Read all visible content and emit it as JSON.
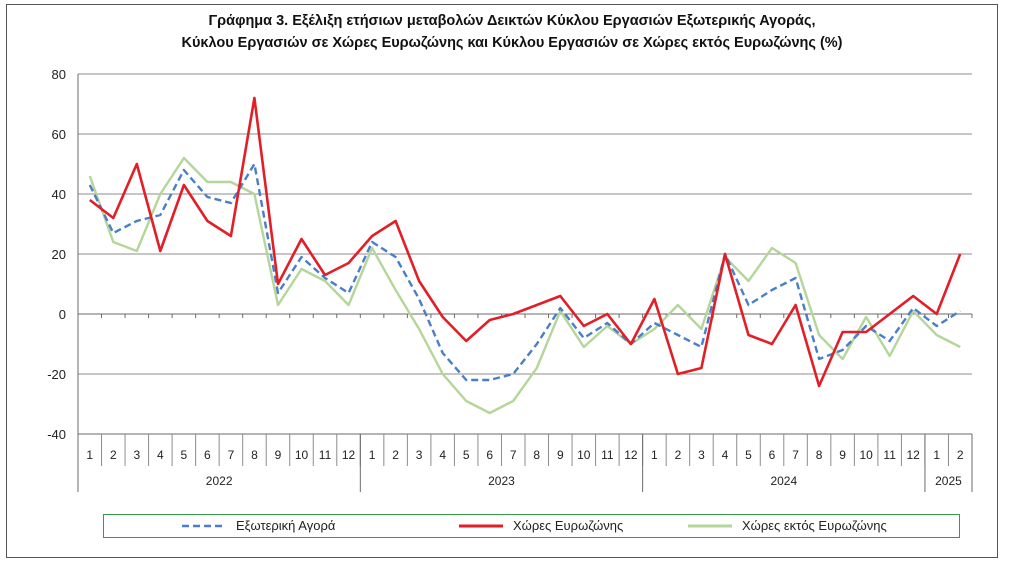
{
  "title_line1": "Γράφημα 3. Εξέλιξη  ετήσιων μεταβολών Δεικτών Κύκλου Εργασιών Εξωτερικής Αγοράς,",
  "title_line2": "Κύκλου Εργασιών σε Χώρες Ευρωζώνης και Κύκλου Εργασιών σε Χώρες εκτός Ευρωζώνης (%)",
  "chart_data": {
    "type": "line",
    "title": "Γράφημα 3. Εξέλιξη  ετήσιων μεταβολών Δεικτών Κύκλου Εργασιών Εξωτερικής Αγοράς, Κύκλου Εργασιών σε Χώρες Ευρωζώνης και Κύκλου Εργασιών σε Χώρες εκτός Ευρωζώνης (%)",
    "ylim": [
      -40,
      80
    ],
    "yticks": [
      80,
      60,
      40,
      20,
      0,
      -20,
      -40
    ],
    "grid": true,
    "legend_position": "bottom",
    "months": [
      "1",
      "2",
      "3",
      "4",
      "5",
      "6",
      "7",
      "8",
      "9",
      "10",
      "11",
      "12",
      "1",
      "2",
      "3",
      "4",
      "5",
      "6",
      "7",
      "8",
      "9",
      "10",
      "11",
      "12",
      "1",
      "2",
      "3",
      "4",
      "5",
      "6",
      "7",
      "8",
      "9",
      "10",
      "11",
      "12",
      "1",
      "2"
    ],
    "years": [
      {
        "label": "2022",
        "count": 12
      },
      {
        "label": "2023",
        "count": 12
      },
      {
        "label": "2024",
        "count": 12
      },
      {
        "label": "2025",
        "count": 2
      }
    ],
    "series": [
      {
        "name": "Εξωτερική Αγορά",
        "color": "#4a7ec9",
        "style": "dashed",
        "values": [
          43,
          27,
          31,
          33,
          48,
          39,
          37,
          50,
          7,
          19,
          12,
          7,
          24,
          19,
          5,
          -13,
          -22,
          -22,
          -20,
          -10,
          2,
          -8,
          -3,
          -10,
          -3,
          -7,
          -11,
          20,
          3,
          8,
          12,
          -15,
          -12,
          -4,
          -9,
          2,
          -4,
          1
        ]
      },
      {
        "name": "Χώρες Ευρωζώνης",
        "color": "#e21e26",
        "style": "solid",
        "values": [
          38,
          32,
          50,
          21,
          43,
          31,
          26,
          72,
          10,
          25,
          13,
          17,
          26,
          31,
          11,
          -1,
          -9,
          -2,
          0,
          3,
          6,
          -4,
          0,
          -10,
          5,
          -20,
          -18,
          20,
          -7,
          -10,
          3,
          -24,
          -6,
          -6,
          0,
          6,
          0,
          20
        ]
      },
      {
        "name": "Χώρες εκτός Ευρωζώνης",
        "color": "#b5d69a",
        "style": "solid",
        "values": [
          46,
          24,
          21,
          40,
          52,
          44,
          44,
          40,
          3,
          15,
          11,
          3,
          22,
          8,
          -5,
          -20,
          -29,
          -33,
          -29,
          -18,
          1,
          -11,
          -4,
          -10,
          -5,
          3,
          -5,
          19,
          11,
          22,
          17,
          -7,
          -15,
          -1,
          -14,
          1,
          -7,
          -11
        ]
      }
    ]
  }
}
